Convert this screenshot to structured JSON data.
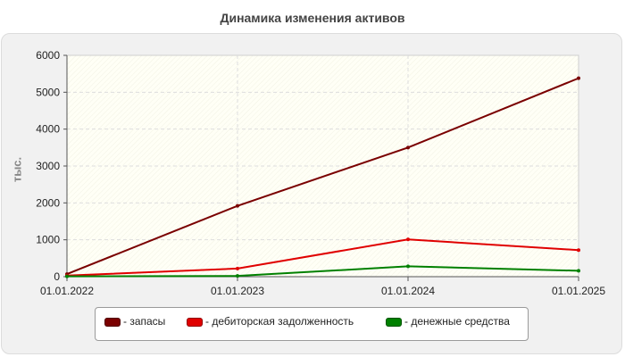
{
  "chart_data": {
    "type": "line",
    "title": "Динамика изменения активов",
    "ylabel": "тыс.",
    "xlabel": "",
    "categories": [
      "01.01.2022",
      "01.01.2023",
      "01.01.2024",
      "01.01.2025"
    ],
    "ylim": [
      0,
      6000
    ],
    "yticks": [
      "0",
      "1000",
      "2000",
      "3000",
      "4000",
      "5000",
      "6000"
    ],
    "grid": true,
    "legend_placement": "bottom",
    "series": [
      {
        "name": "- запасы",
        "color": "#7a0000",
        "values": [
          70,
          1920,
          3500,
          5380
        ]
      },
      {
        "name": "- дебиторская задолженность",
        "color": "#e00000",
        "values": [
          30,
          220,
          1010,
          720
        ]
      },
      {
        "name": "- денежные средства",
        "color": "#008000",
        "values": [
          10,
          20,
          280,
          160
        ]
      }
    ]
  }
}
